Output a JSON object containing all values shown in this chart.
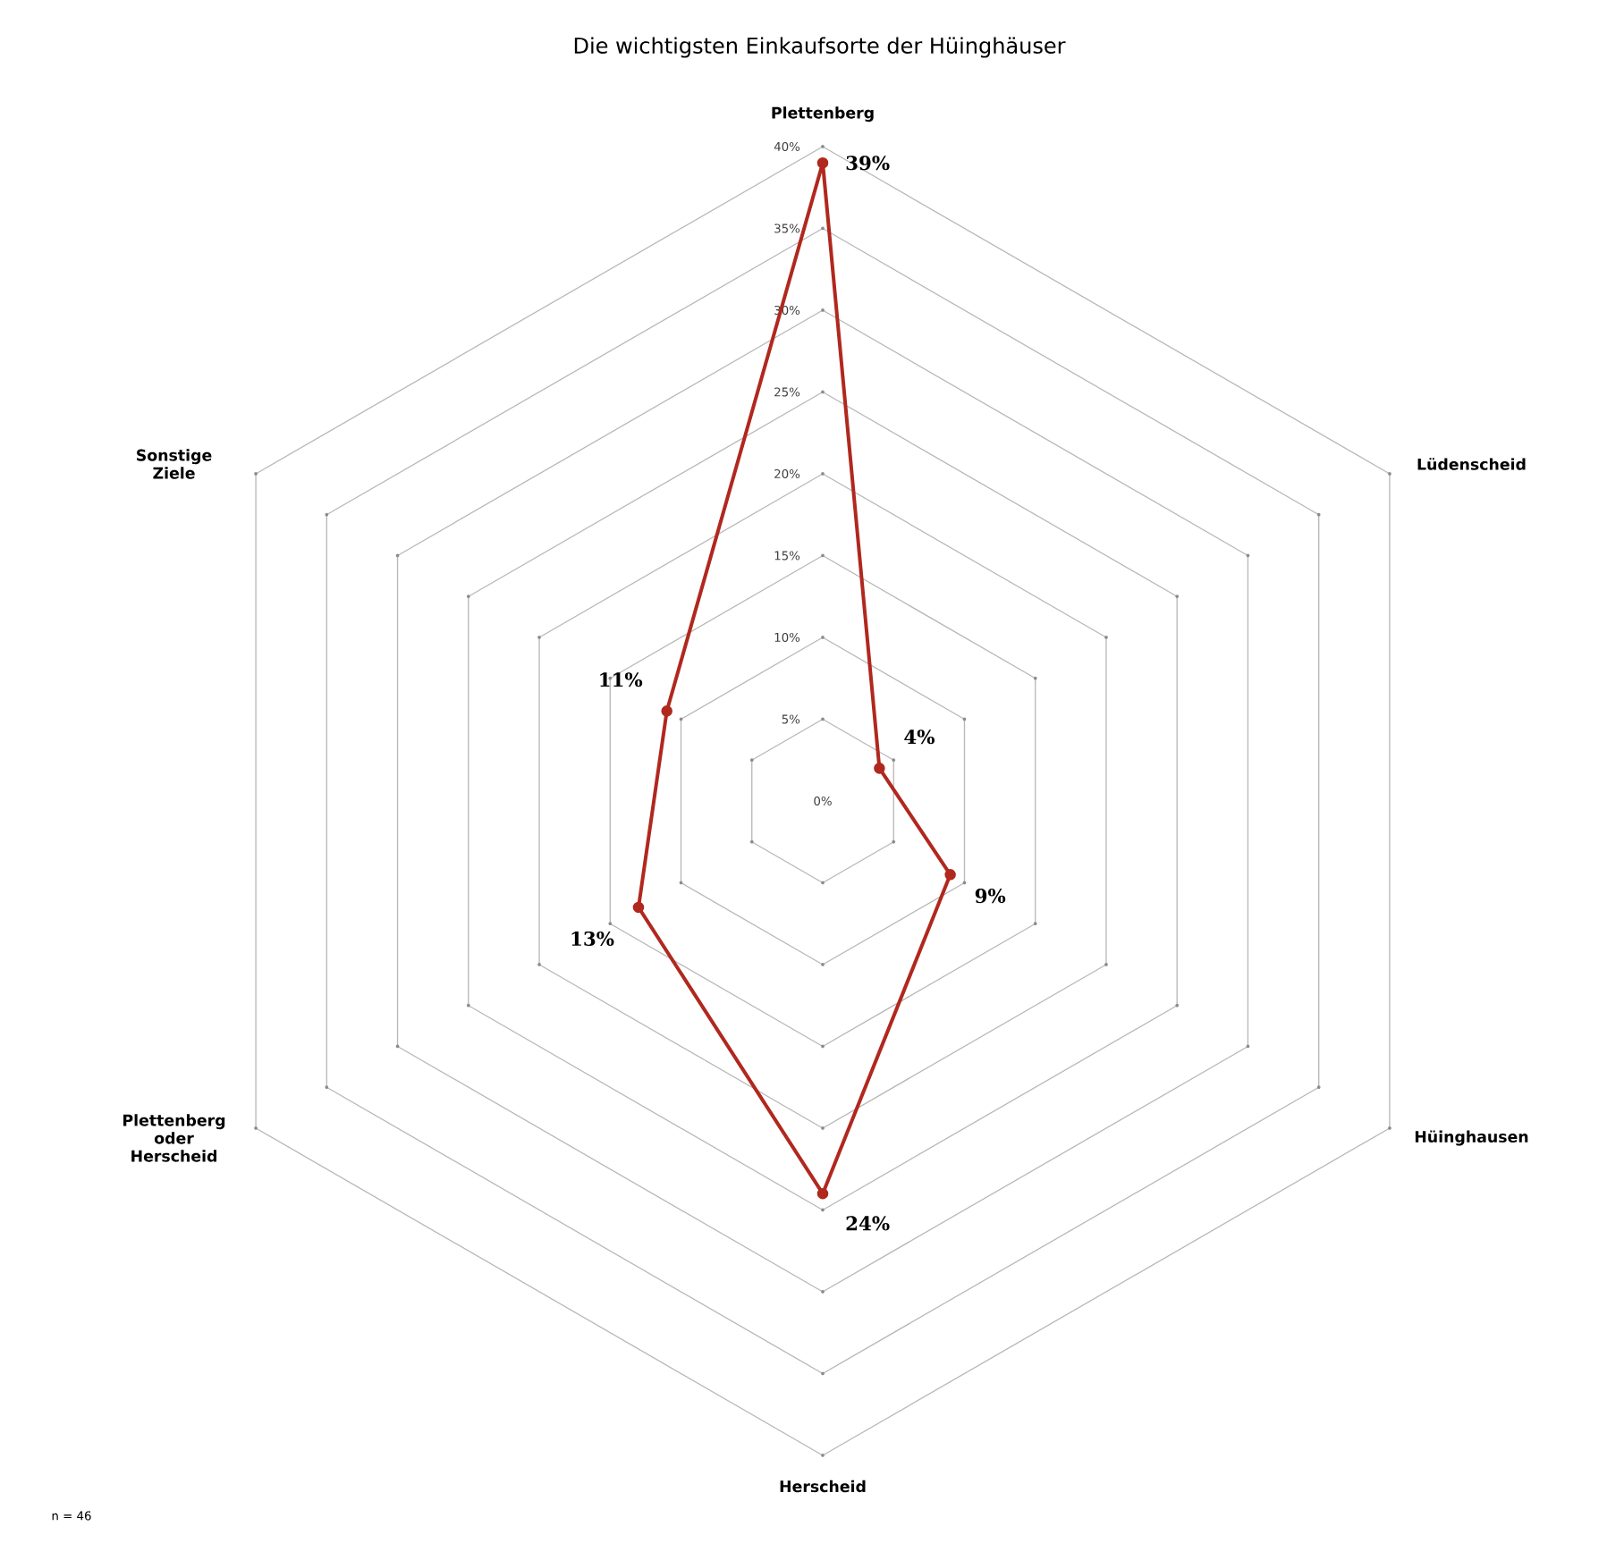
{
  "chart_data": {
    "type": "radar",
    "title": "Die wichtigsten Einkaufsorte der Hüinghäuser",
    "categories": [
      "Plettenberg",
      "Lüdenscheid",
      "Hüinghausen",
      "Herscheid",
      "Plettenberg oder Herscheid",
      "Sonstige Ziele"
    ],
    "series": [
      {
        "color": "#b0281e",
        "values": [
          39,
          4,
          9,
          24,
          13,
          11
        ],
        "value_labels": [
          "39%",
          "4%",
          "9%",
          "24%",
          "13%",
          "11%"
        ]
      }
    ],
    "ylim": [
      0,
      40
    ],
    "yticks": [
      {
        "value": 0,
        "label": "0%"
      },
      {
        "value": 5,
        "label": "5%"
      },
      {
        "value": 10,
        "label": "10%"
      },
      {
        "value": 15,
        "label": "15%"
      },
      {
        "value": 20,
        "label": "20%"
      },
      {
        "value": 25,
        "label": "25%"
      },
      {
        "value": 30,
        "label": "30%"
      },
      {
        "value": 35,
        "label": "35%"
      },
      {
        "value": 40,
        "label": "40%"
      }
    ],
    "grid": true,
    "marker": "circle",
    "line_style": "solid",
    "annotations": [
      "n = 46"
    ]
  }
}
